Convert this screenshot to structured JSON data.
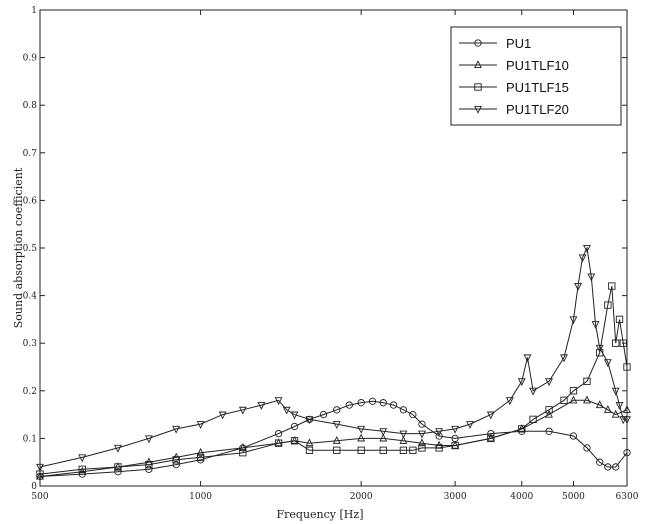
{
  "chart_data": {
    "type": "line",
    "title": "",
    "xlabel": "Frequency [Hz]",
    "ylabel": "Sound absorption coefficient",
    "xlim": [
      500,
      6300
    ],
    "ylim": [
      0,
      1
    ],
    "x_ticks": [
      500,
      1000,
      2000,
      3000,
      4000,
      5000,
      6300
    ],
    "x_tick_labels": [
      "500",
      "1000",
      "2000",
      "3000",
      "4000",
      "5000",
      "6300"
    ],
    "y_ticks": [
      0,
      0.1,
      0.2,
      0.3,
      0.4,
      0.5,
      0.6,
      0.7,
      0.8,
      0.9,
      1
    ],
    "y_tick_labels": [
      "0",
      "0.1",
      "0.2",
      "0.3",
      "0.4",
      "0.5",
      "0.6",
      "0.7",
      "0.8",
      "0.9",
      "1"
    ],
    "legend_position": "top-right",
    "grid": false,
    "series": [
      {
        "name": "PU1",
        "marker": "circle",
        "x": [
          500,
          600,
          700,
          800,
          900,
          1000,
          1200,
          1400,
          1500,
          1600,
          1700,
          1800,
          1900,
          2000,
          2100,
          2200,
          2300,
          2400,
          2500,
          2600,
          2800,
          3000,
          3500,
          4000,
          4500,
          5000,
          5300,
          5600,
          5800,
          6000,
          6300
        ],
        "y": [
          0.02,
          0.025,
          0.03,
          0.035,
          0.045,
          0.055,
          0.08,
          0.11,
          0.125,
          0.14,
          0.15,
          0.16,
          0.17,
          0.175,
          0.178,
          0.175,
          0.17,
          0.16,
          0.15,
          0.13,
          0.105,
          0.1,
          0.11,
          0.115,
          0.115,
          0.105,
          0.08,
          0.05,
          0.04,
          0.04,
          0.07
        ]
      },
      {
        "name": "PU1TLF10",
        "marker": "triangle-up",
        "x": [
          500,
          600,
          700,
          800,
          900,
          1000,
          1200,
          1400,
          1500,
          1600,
          1800,
          2000,
          2200,
          2400,
          2600,
          2800,
          3000,
          3500,
          4000,
          4500,
          5000,
          5300,
          5600,
          5800,
          6000,
          6300
        ],
        "y": [
          0.02,
          0.03,
          0.04,
          0.05,
          0.06,
          0.07,
          0.08,
          0.09,
          0.095,
          0.09,
          0.095,
          0.1,
          0.1,
          0.095,
          0.09,
          0.085,
          0.085,
          0.1,
          0.12,
          0.15,
          0.18,
          0.18,
          0.17,
          0.16,
          0.15,
          0.16
        ]
      },
      {
        "name": "PU1TLF15",
        "marker": "square",
        "x": [
          500,
          600,
          700,
          800,
          900,
          1000,
          1200,
          1400,
          1500,
          1600,
          1800,
          2000,
          2200,
          2400,
          2500,
          2600,
          2800,
          3000,
          3500,
          4000,
          4200,
          4500,
          4800,
          5000,
          5300,
          5600,
          5800,
          5900,
          6000,
          6100,
          6200,
          6300
        ],
        "y": [
          0.025,
          0.035,
          0.04,
          0.045,
          0.055,
          0.06,
          0.07,
          0.09,
          0.095,
          0.075,
          0.075,
          0.075,
          0.075,
          0.075,
          0.075,
          0.08,
          0.08,
          0.085,
          0.1,
          0.12,
          0.14,
          0.16,
          0.18,
          0.2,
          0.22,
          0.28,
          0.38,
          0.42,
          0.3,
          0.35,
          0.3,
          0.25
        ]
      },
      {
        "name": "PU1TLF20",
        "marker": "triangle-down",
        "x": [
          500,
          600,
          700,
          800,
          900,
          1000,
          1100,
          1200,
          1300,
          1400,
          1450,
          1500,
          1600,
          1800,
          2000,
          2200,
          2400,
          2600,
          2800,
          3000,
          3200,
          3500,
          3800,
          4000,
          4100,
          4200,
          4500,
          4800,
          5000,
          5100,
          5200,
          5300,
          5400,
          5500,
          5600,
          5800,
          6000,
          6100,
          6200,
          6300
        ],
        "y": [
          0.04,
          0.06,
          0.08,
          0.1,
          0.12,
          0.13,
          0.15,
          0.16,
          0.17,
          0.18,
          0.16,
          0.15,
          0.14,
          0.13,
          0.12,
          0.115,
          0.11,
          0.11,
          0.115,
          0.12,
          0.13,
          0.15,
          0.18,
          0.22,
          0.27,
          0.2,
          0.22,
          0.27,
          0.35,
          0.42,
          0.48,
          0.5,
          0.44,
          0.34,
          0.29,
          0.26,
          0.2,
          0.17,
          0.14,
          0.14
        ]
      }
    ]
  }
}
